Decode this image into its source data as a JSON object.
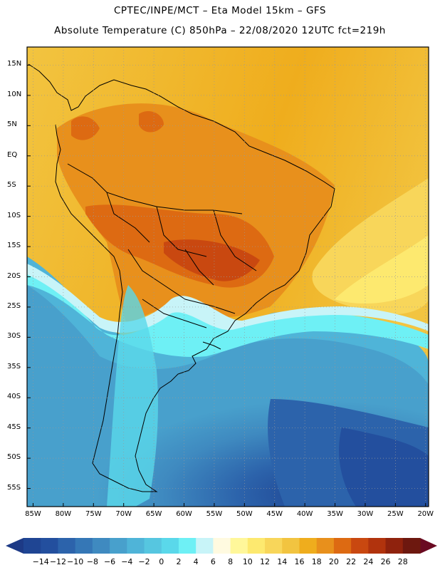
{
  "header": {
    "line1": "CPTEC/INPE/MCT –  Eta Model 15km – GFS",
    "line2": "Absolute Temperature (C) 850hPa – 22/08/2020 12UTC fct=219h"
  },
  "axes": {
    "lat_labels": [
      "15N",
      "10N",
      "5N",
      "EQ",
      "5S",
      "10S",
      "15S",
      "20S",
      "25S",
      "30S",
      "35S",
      "40S",
      "45S",
      "50S",
      "55S"
    ],
    "lat_values": [
      15,
      10,
      5,
      0,
      -5,
      -10,
      -15,
      -20,
      -25,
      -30,
      -35,
      -40,
      -45,
      -50,
      -55
    ],
    "lon_labels": [
      "85W",
      "80W",
      "75W",
      "70W",
      "65W",
      "60W",
      "55W",
      "50W",
      "45W",
      "40W",
      "35W",
      "30W",
      "25W",
      "20W"
    ],
    "lon_values": [
      -85,
      -80,
      -75,
      -70,
      -65,
      -60,
      -55,
      -50,
      -45,
      -40,
      -35,
      -30,
      -25,
      -20
    ],
    "lat_range": [
      -58,
      18
    ],
    "lon_range": [
      -86,
      -19.5
    ]
  },
  "colorbar": {
    "labels": [
      "-14",
      "-12",
      "-10",
      "-8",
      "-6",
      "-4",
      "-2",
      "0",
      "2",
      "4",
      "6",
      "8",
      "10",
      "12",
      "14",
      "16",
      "18",
      "20",
      "22",
      "24",
      "26",
      "28"
    ],
    "colors": [
      "#1f4593",
      "#234f9e",
      "#2c63ab",
      "#3577b6",
      "#3f8ac0",
      "#48a0cc",
      "#4fb4d8",
      "#56c6e0",
      "#5ad8ea",
      "#6ef0f5",
      "#c8f4f8",
      "#fffae0",
      "#fff79a",
      "#fde96f",
      "#f8d65a",
      "#f2c440",
      "#efad1d",
      "#e8901c",
      "#dd6a12",
      "#c94810",
      "#b1330d",
      "#8f220d",
      "#6d180f"
    ],
    "underflow_color": "#1d3a86",
    "overflow_color": "#6a0a22"
  },
  "legend": {
    "unit": "C"
  }
}
